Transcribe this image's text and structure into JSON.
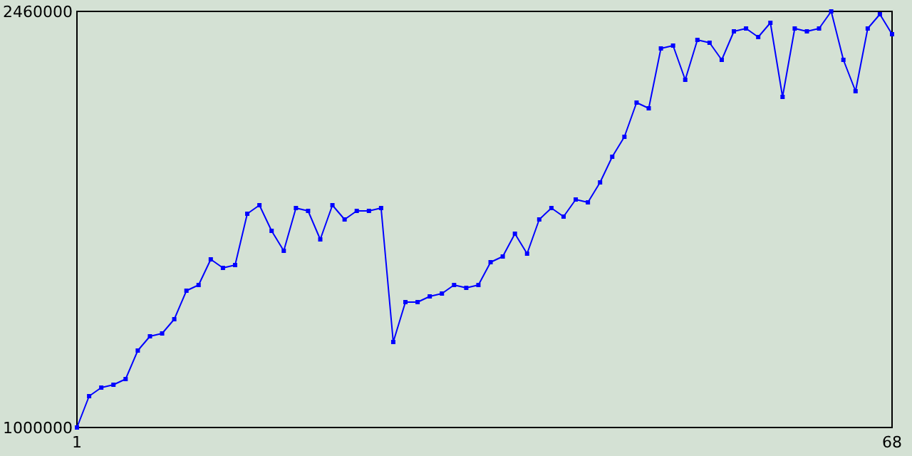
{
  "chart_data": {
    "type": "line",
    "marker": "square",
    "line_style": "solid",
    "x": [
      1,
      2,
      3,
      4,
      5,
      6,
      7,
      8,
      9,
      10,
      11,
      12,
      13,
      14,
      15,
      16,
      17,
      18,
      19,
      20,
      21,
      22,
      23,
      24,
      25,
      26,
      27,
      28,
      29,
      30,
      31,
      32,
      33,
      34,
      35,
      36,
      37,
      38,
      39,
      40,
      41,
      42,
      43,
      44,
      45,
      46,
      47,
      48,
      49,
      50,
      51,
      52,
      53,
      54,
      55,
      56,
      57,
      58,
      59,
      60,
      61,
      62,
      63,
      64,
      65,
      66,
      67,
      68
    ],
    "series": [
      {
        "color": "#0000ff",
        "values": [
          1000000,
          1110000,
          1140000,
          1150000,
          1170000,
          1270000,
          1320000,
          1330000,
          1380000,
          1480000,
          1500000,
          1590000,
          1560000,
          1570000,
          1750000,
          1780000,
          1690000,
          1620000,
          1770000,
          1760000,
          1660000,
          1780000,
          1730000,
          1760000,
          1760000,
          1770000,
          1300000,
          1440000,
          1440000,
          1460000,
          1470000,
          1500000,
          1490000,
          1500000,
          1580000,
          1600000,
          1680000,
          1610000,
          1730000,
          1770000,
          1740000,
          1800000,
          1790000,
          1860000,
          1950000,
          2020000,
          2140000,
          2120000,
          2330000,
          2340000,
          2220000,
          2360000,
          2350000,
          2290000,
          2390000,
          2400000,
          2370000,
          2420000,
          2160000,
          2400000,
          2390000,
          2400000,
          2460000,
          2290000,
          2180000,
          2400000,
          2450000,
          2380000
        ]
      }
    ],
    "xlim": [
      1,
      68
    ],
    "xticks": [
      1,
      68
    ],
    "ylim": [
      1000000,
      2460000
    ],
    "yticks": [
      1000000,
      2460000
    ]
  }
}
